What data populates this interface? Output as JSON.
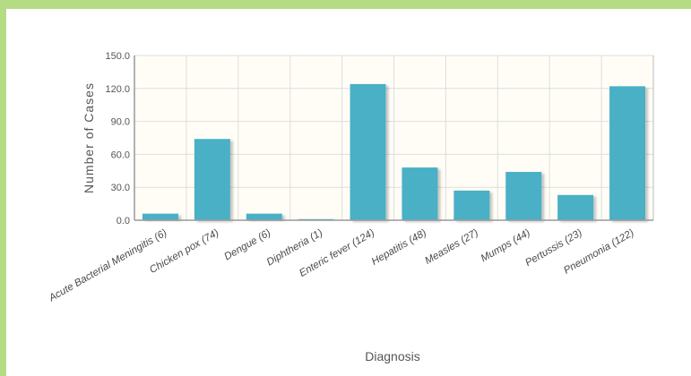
{
  "chart_data": {
    "type": "bar",
    "title": "",
    "xlabel": "Diagnosis",
    "ylabel": "Number of Cases",
    "ylim": [
      0,
      150
    ],
    "yticks": [
      "0.0",
      "30.0",
      "60.0",
      "90.0",
      "120.0",
      "150.0"
    ],
    "grid": true,
    "categories": [
      "Acute Bacterial Meningitis (6)",
      "Chicken pox (74)",
      "Dengue (6)",
      "Diphtheria (1)",
      "Enteric fever (124)",
      "Hepatitis (48)",
      "Measles (27)",
      "Mumps (44)",
      "Pertussis (23)",
      "Pneumonia (122)"
    ],
    "values": [
      6,
      74,
      6,
      1,
      124,
      48,
      27,
      44,
      23,
      122
    ],
    "bar_color": "#4ab0c6",
    "plot_background": "#fffdf6"
  }
}
